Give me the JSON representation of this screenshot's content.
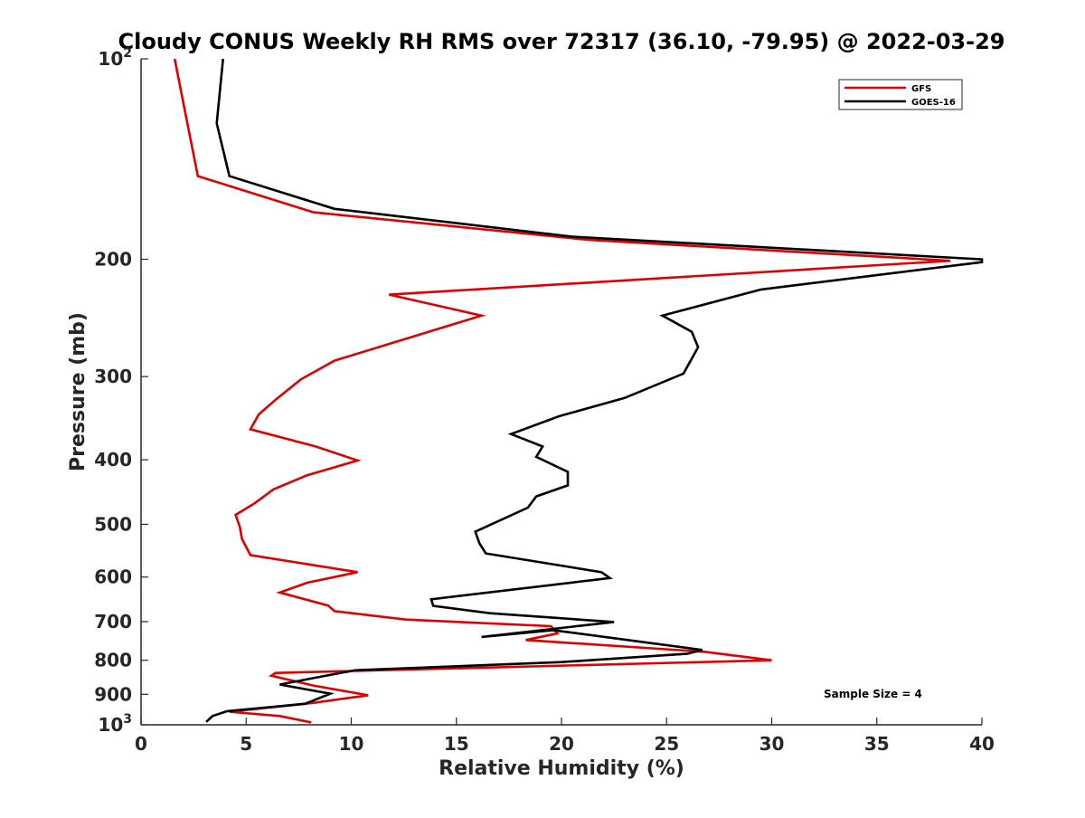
{
  "chart_data": {
    "type": "line",
    "title": "Cloudy CONUS Weekly RH RMS over 72317 (36.10, -79.95) @ 2022-03-29",
    "xlabel": "Relative Humidity (%)",
    "ylabel": "Pressure (mb)",
    "xlim": [
      0,
      40
    ],
    "ylim": [
      100,
      1000
    ],
    "y_scale": "log",
    "y_reversed": true,
    "grid": false,
    "legend_position": "top-right",
    "x_ticks": [
      "0",
      "5",
      "10",
      "15",
      "20",
      "25",
      "30",
      "35",
      "40"
    ],
    "y_ticks": [
      {
        "value": 100,
        "base": "10",
        "exp": "2"
      },
      {
        "value": 200,
        "label": "200"
      },
      {
        "value": 300,
        "label": "300"
      },
      {
        "value": 400,
        "label": "400"
      },
      {
        "value": 500,
        "label": "500"
      },
      {
        "value": 600,
        "label": "600"
      },
      {
        "value": 700,
        "label": "700"
      },
      {
        "value": 800,
        "label": "800"
      },
      {
        "value": 900,
        "label": "900"
      },
      {
        "value": 1000,
        "base": "10",
        "exp": "3"
      }
    ],
    "annotation": "Sample Size = 4",
    "series": [
      {
        "name": "GFS",
        "color": "#e00000",
        "points": [
          [
            1.6,
            100
          ],
          [
            2.2,
            125
          ],
          [
            2.7,
            150
          ],
          [
            8.2,
            170
          ],
          [
            21.3,
            187
          ],
          [
            38.5,
            201
          ],
          [
            11.8,
            226
          ],
          [
            16.2,
            243
          ],
          [
            12.3,
            265
          ],
          [
            9.2,
            284
          ],
          [
            7.6,
            303
          ],
          [
            6.4,
            325
          ],
          [
            5.6,
            342
          ],
          [
            5.2,
            360
          ],
          [
            8.3,
            382
          ],
          [
            10.3,
            401
          ],
          [
            7.9,
            422
          ],
          [
            6.3,
            443
          ],
          [
            5.4,
            465
          ],
          [
            4.5,
            484
          ],
          [
            4.7,
            505
          ],
          [
            4.8,
            526
          ],
          [
            5.2,
            556
          ],
          [
            10.3,
            590
          ],
          [
            7.9,
            612
          ],
          [
            6.6,
            633
          ],
          [
            8.9,
            662
          ],
          [
            9.2,
            675
          ],
          [
            12.6,
            695
          ],
          [
            19.5,
            711
          ],
          [
            19.8,
            729
          ],
          [
            18.3,
            746
          ],
          [
            26.8,
            777
          ],
          [
            30.0,
            800
          ],
          [
            6.4,
            836
          ],
          [
            6.2,
            844
          ],
          [
            8.2,
            873
          ],
          [
            10.8,
            903
          ],
          [
            8.3,
            926
          ],
          [
            4.2,
            956
          ],
          [
            6.6,
            970
          ],
          [
            8.1,
            992
          ]
        ]
      },
      {
        "name": "GOES-16",
        "color": "#000000",
        "points": [
          [
            3.9,
            100
          ],
          [
            3.6,
            125
          ],
          [
            4.2,
            150
          ],
          [
            9.2,
            168
          ],
          [
            20.5,
            185
          ],
          [
            40.0,
            200
          ],
          [
            40.0,
            202
          ],
          [
            29.5,
            222
          ],
          [
            24.8,
            243
          ],
          [
            26.2,
            257
          ],
          [
            26.5,
            271
          ],
          [
            25.8,
            297
          ],
          [
            23.0,
            323
          ],
          [
            19.9,
            344
          ],
          [
            17.6,
            366
          ],
          [
            19.1,
            382
          ],
          [
            18.8,
            396
          ],
          [
            20.3,
            417
          ],
          [
            20.3,
            437
          ],
          [
            18.8,
            454
          ],
          [
            18.4,
            472
          ],
          [
            15.9,
            513
          ],
          [
            16.1,
            534
          ],
          [
            16.4,
            553
          ],
          [
            21.9,
            590
          ],
          [
            22.3,
            602
          ],
          [
            13.8,
            648
          ],
          [
            13.9,
            663
          ],
          [
            16.6,
            680
          ],
          [
            22.5,
            701
          ],
          [
            16.2,
            738
          ],
          [
            19.6,
            721
          ],
          [
            26.7,
            772
          ],
          [
            26.0,
            782
          ],
          [
            20.0,
            805
          ],
          [
            10.2,
            828
          ],
          [
            9.3,
            838
          ],
          [
            6.6,
            870
          ],
          [
            9.0,
            898
          ],
          [
            7.8,
            930
          ],
          [
            4.1,
            954
          ],
          [
            3.4,
            970
          ],
          [
            3.1,
            990
          ]
        ]
      }
    ]
  }
}
